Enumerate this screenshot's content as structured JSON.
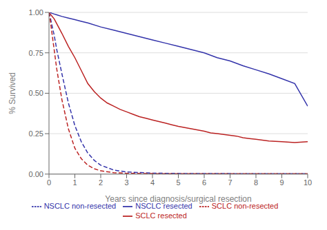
{
  "chart_data": {
    "type": "line",
    "xlabel": "Years since diagnosis/surgical resection",
    "ylabel": "% Survived",
    "xlim": [
      0,
      10
    ],
    "ylim": [
      0.0,
      1.0
    ],
    "xticks": [
      0,
      1,
      2,
      3,
      4,
      5,
      6,
      7,
      8,
      9,
      10
    ],
    "yticks": [
      {
        "value": 0.0,
        "label": "0.00"
      },
      {
        "value": 0.25,
        "label": "0.25"
      },
      {
        "value": 0.5,
        "label": "0.50"
      },
      {
        "value": 0.75,
        "label": "0.75"
      },
      {
        "value": 1.0,
        "label": "1.00"
      }
    ],
    "grid": "y",
    "legend": "bottom",
    "series": [
      {
        "name": "NSCLC resected",
        "color": "#3333aa",
        "line_style": "solid",
        "x": [
          0,
          0.05,
          0.1,
          0.2,
          0.3,
          0.5,
          0.75,
          1.0,
          1.25,
          1.5,
          2.0,
          2.5,
          3.0,
          3.5,
          4.0,
          4.5,
          5.0,
          5.5,
          6.0,
          6.5,
          7.0,
          7.5,
          8.0,
          8.5,
          9.0,
          9.5,
          10.0
        ],
        "values": [
          1.0,
          1.0,
          0.995,
          0.99,
          0.985,
          0.975,
          0.965,
          0.955,
          0.945,
          0.935,
          0.91,
          0.89,
          0.87,
          0.85,
          0.83,
          0.81,
          0.79,
          0.77,
          0.75,
          0.72,
          0.7,
          0.67,
          0.645,
          0.62,
          0.59,
          0.56,
          0.42
        ]
      },
      {
        "name": "SCLC resected",
        "color": "#bb2222",
        "line_style": "solid",
        "x": [
          0,
          0.05,
          0.1,
          0.2,
          0.3,
          0.5,
          0.75,
          1.0,
          1.25,
          1.5,
          1.75,
          2.0,
          2.25,
          2.5,
          2.75,
          3.0,
          3.25,
          3.5,
          3.75,
          4.0,
          4.25,
          4.5,
          4.75,
          5.0,
          5.5,
          6.0,
          6.25,
          6.5,
          6.75,
          7.0,
          7.25,
          7.5,
          7.75,
          8.0,
          8.5,
          9.0,
          9.5,
          10.0
        ],
        "values": [
          1.0,
          0.99,
          0.98,
          0.96,
          0.93,
          0.87,
          0.79,
          0.72,
          0.64,
          0.56,
          0.51,
          0.47,
          0.44,
          0.42,
          0.4,
          0.385,
          0.37,
          0.355,
          0.345,
          0.335,
          0.325,
          0.315,
          0.305,
          0.295,
          0.28,
          0.265,
          0.255,
          0.25,
          0.245,
          0.24,
          0.235,
          0.225,
          0.22,
          0.215,
          0.205,
          0.2,
          0.195,
          0.2
        ]
      },
      {
        "name": "NSCLC non-resected",
        "color": "#3333aa",
        "line_style": "dashed",
        "x": [
          0,
          0.05,
          0.1,
          0.2,
          0.3,
          0.5,
          0.75,
          1.0,
          1.25,
          1.5,
          1.75,
          2.0,
          2.5,
          3.0,
          4.0,
          5.0,
          6.0,
          7.0,
          8.0,
          9.0,
          10.0
        ],
        "values": [
          1.0,
          0.97,
          0.93,
          0.86,
          0.77,
          0.62,
          0.44,
          0.3,
          0.2,
          0.13,
          0.085,
          0.055,
          0.025,
          0.013,
          0.006,
          0.004,
          0.003,
          0.003,
          0.002,
          0.002,
          0.002
        ]
      },
      {
        "name": "SCLC non-resected",
        "color": "#bb2222",
        "line_style": "dashed",
        "x": [
          0,
          0.05,
          0.1,
          0.2,
          0.3,
          0.5,
          0.75,
          1.0,
          1.25,
          1.5,
          1.75,
          2.0,
          2.5,
          3.0,
          4.0,
          5.0,
          6.0,
          7.0,
          8.0,
          9.0,
          10.0
        ],
        "values": [
          1.0,
          0.95,
          0.89,
          0.77,
          0.65,
          0.46,
          0.28,
          0.16,
          0.095,
          0.055,
          0.033,
          0.02,
          0.009,
          0.005,
          0.003,
          0.002,
          0.002,
          0.002,
          0.002,
          0.002,
          0.002
        ]
      }
    ]
  }
}
